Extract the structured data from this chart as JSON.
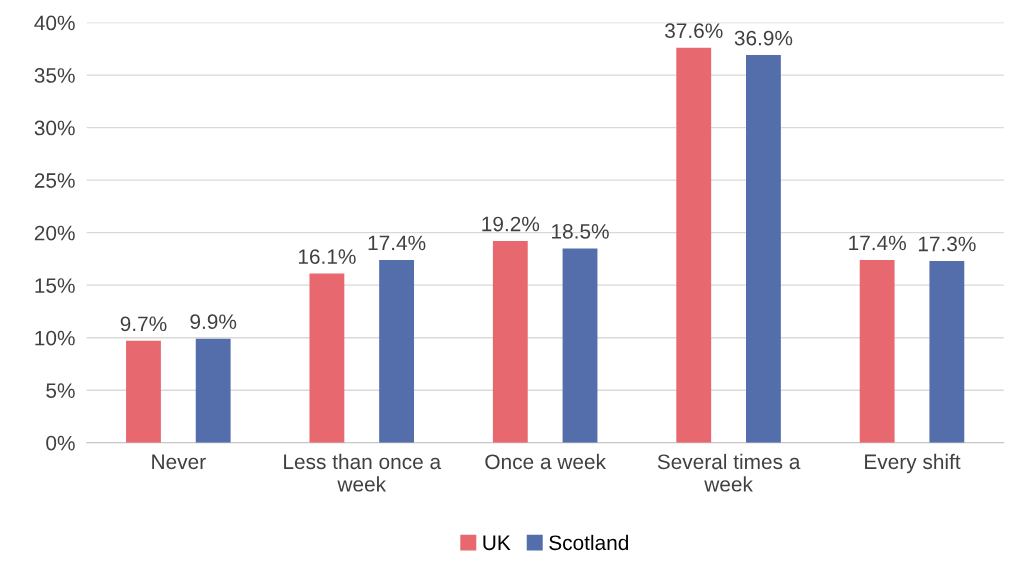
{
  "chart_data": {
    "type": "bar",
    "categories": [
      "Never",
      "Less than once a\nweek",
      "Once a week",
      "Several times a\nweek",
      "Every shift"
    ],
    "series": [
      {
        "name": "UK",
        "color": "#e8686f",
        "values": [
          9.7,
          16.1,
          19.2,
          37.6,
          17.4
        ],
        "value_labels": [
          "9.7%",
          "16.1%",
          "19.2%",
          "37.6%",
          "17.4%"
        ]
      },
      {
        "name": "Scotland",
        "color": "#536eab",
        "values": [
          9.9,
          17.4,
          18.5,
          36.9,
          17.3
        ],
        "value_labels": [
          "9.9%",
          "17.4%",
          "18.5%",
          "36.9%",
          "17.3%"
        ]
      }
    ],
    "ylim": [
      0,
      40
    ],
    "yticks": [
      {
        "value": 0,
        "label": "0%"
      },
      {
        "value": 5,
        "label": "5%"
      },
      {
        "value": 10,
        "label": "10%"
      },
      {
        "value": 15,
        "label": "15%"
      },
      {
        "value": 20,
        "label": "20%"
      },
      {
        "value": 25,
        "label": "25%"
      },
      {
        "value": 30,
        "label": "30%"
      },
      {
        "value": 35,
        "label": "35%"
      },
      {
        "value": 40,
        "label": "40%"
      }
    ],
    "grid": "y",
    "legend": "bottom"
  }
}
